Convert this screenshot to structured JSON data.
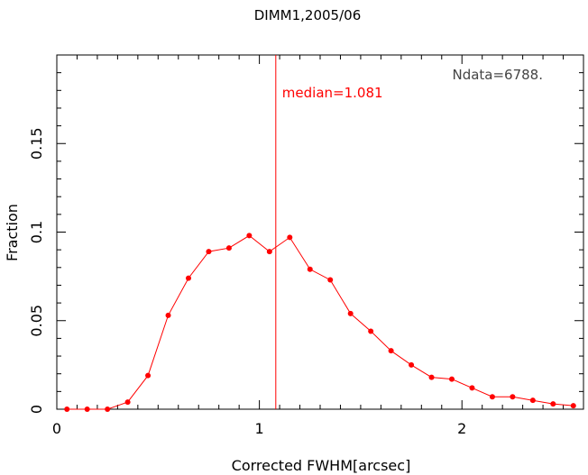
{
  "chart_data": {
    "type": "line",
    "title": "DIMM1,2005/06",
    "xlabel": "Corrected FWHM[arcsec]",
    "ylabel": "Fraction",
    "xlim": [
      0,
      2.6
    ],
    "ylim": [
      0,
      0.2
    ],
    "x_ticks": [
      0,
      1,
      2
    ],
    "x_tick_labels": [
      "0",
      "1",
      "2"
    ],
    "y_ticks": [
      0,
      0.05,
      0.1,
      0.15
    ],
    "y_tick_labels": [
      "0",
      "0.05",
      "0.1",
      "0.15"
    ],
    "grid": false,
    "series_color": "#ff0000",
    "median_color": "#ff0000",
    "median_value": 1.081,
    "median_label": "median=1.081",
    "ndata_label": "Ndata=6788.",
    "x": [
      0.05,
      0.15,
      0.25,
      0.35,
      0.45,
      0.55,
      0.65,
      0.75,
      0.85,
      0.95,
      1.05,
      1.15,
      1.25,
      1.35,
      1.45,
      1.55,
      1.65,
      1.75,
      1.85,
      1.95,
      2.05,
      2.15,
      2.25,
      2.35,
      2.45,
      2.55
    ],
    "values": [
      0.0,
      0.0,
      0.0,
      0.004,
      0.019,
      0.053,
      0.074,
      0.089,
      0.091,
      0.098,
      0.089,
      0.097,
      0.079,
      0.073,
      0.054,
      0.044,
      0.033,
      0.025,
      0.018,
      0.017,
      0.012,
      0.007,
      0.007,
      0.005,
      0.003,
      0.002
    ]
  }
}
